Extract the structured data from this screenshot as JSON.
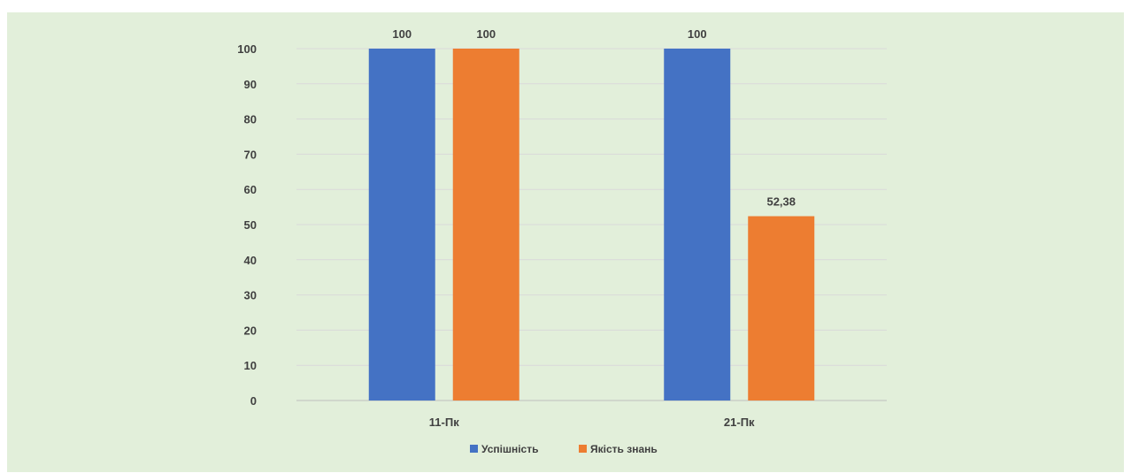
{
  "chart_data": {
    "type": "bar",
    "title": "",
    "xlabel": "",
    "ylabel": "",
    "categories": [
      "11-Пк",
      "21-Пк"
    ],
    "series": [
      {
        "name": "Успішність",
        "values": [
          100,
          100
        ],
        "color": "#4472c4"
      },
      {
        "name": "Якість знань",
        "values": [
          100,
          52.38
        ],
        "color": "#ed7d31"
      }
    ],
    "data_labels": [
      [
        "100",
        "100"
      ],
      [
        "100",
        "52,38"
      ]
    ],
    "ylim": [
      0,
      100
    ],
    "yticks": [
      0,
      10,
      20,
      30,
      40,
      50,
      60,
      70,
      80,
      90,
      100
    ],
    "grid": true,
    "legend_position": "bottom-center",
    "background_color": "#e2efda",
    "gridline_color": "#d9d9d9"
  }
}
